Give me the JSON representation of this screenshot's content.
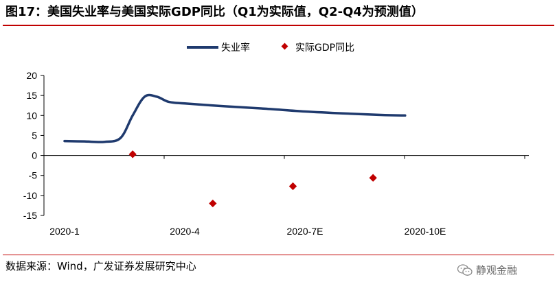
{
  "header": {
    "title": "图17：美国失业率与美国实际GDP同比（Q1为实际值，Q2-Q4为预测值）"
  },
  "footer": {
    "source": "数据来源：Wind，广发证券发展研究中心",
    "watermark": "静观金融"
  },
  "chart_data": {
    "type": "line",
    "x_tick_labels": [
      "2020-1",
      "2020-4",
      "2020-7E",
      "2020-10E"
    ],
    "ylim": [
      -15,
      20
    ],
    "y_ticks": [
      -15,
      -10,
      -5,
      0,
      5,
      10,
      15,
      20
    ],
    "series": [
      {
        "name": "失业率",
        "type": "line",
        "color": "#1f3a6e",
        "points": [
          {
            "x": 0.0,
            "y": 3.6
          },
          {
            "x": 0.5,
            "y": 3.5
          },
          {
            "x": 1.0,
            "y": 3.4
          },
          {
            "x": 1.4,
            "y": 4.4
          },
          {
            "x": 1.7,
            "y": 10.0
          },
          {
            "x": 2.0,
            "y": 14.7
          },
          {
            "x": 2.3,
            "y": 14.7
          },
          {
            "x": 2.6,
            "y": 13.4
          },
          {
            "x": 3.0,
            "y": 13.0
          },
          {
            "x": 4.0,
            "y": 12.3
          },
          {
            "x": 5.0,
            "y": 11.7
          },
          {
            "x": 6.0,
            "y": 11.0
          },
          {
            "x": 7.0,
            "y": 10.5
          },
          {
            "x": 8.0,
            "y": 10.1
          },
          {
            "x": 8.5,
            "y": 10.0
          }
        ]
      },
      {
        "name": "实际GDP同比",
        "type": "scatter",
        "color": "#c00000",
        "points": [
          {
            "x": 1.7,
            "y": 0.3
          },
          {
            "x": 3.7,
            "y": -12.0
          },
          {
            "x": 5.7,
            "y": -7.7
          },
          {
            "x": 7.7,
            "y": -5.6
          }
        ]
      }
    ],
    "legend_position": "top-center"
  }
}
